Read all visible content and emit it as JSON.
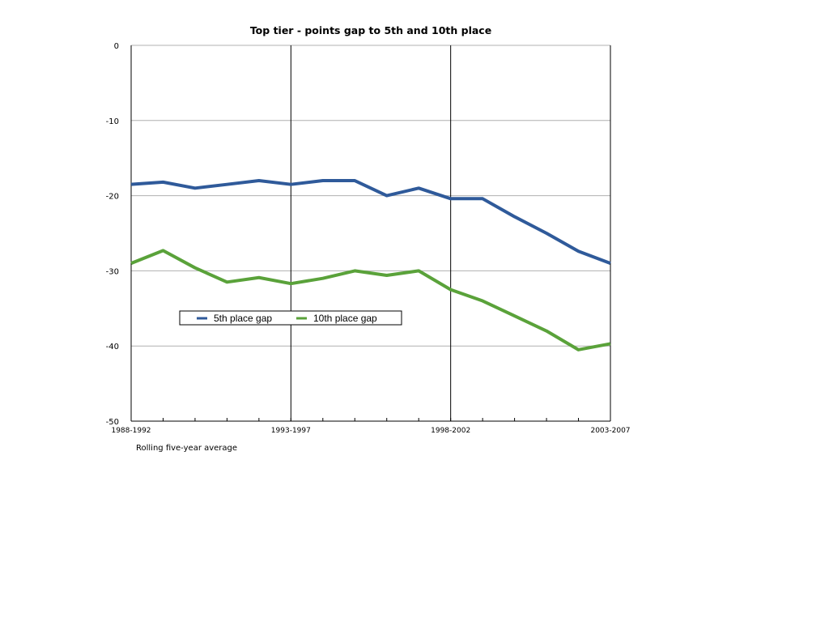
{
  "chart_data": {
    "type": "line",
    "title": "Top tier - points gap to 5th and 10th place",
    "xlabel": "Rolling five-year average",
    "ylabel": "",
    "ylim": [
      -50,
      0
    ],
    "yticks": [
      "0",
      "-10",
      "-20",
      "-30",
      "-40",
      "-50"
    ],
    "ytick_values": [
      0,
      -10,
      -20,
      -30,
      -40,
      -50
    ],
    "x_count": 16,
    "xtick_labels": [
      {
        "index": 0,
        "label": "1988-1992"
      },
      {
        "index": 5,
        "label": "1993-1997"
      },
      {
        "index": 10,
        "label": "1998-2002"
      },
      {
        "index": 15,
        "label": "2003-2007"
      }
    ],
    "grid": "horizontal",
    "legend_placement": "center-left",
    "series": [
      {
        "name": "5th place gap",
        "color": "#2f5a9a",
        "values": [
          -18.5,
          -18.2,
          -19.0,
          -18.5,
          -18.0,
          -18.5,
          -18.0,
          -18.0,
          -20.0,
          -19.0,
          -20.4,
          -20.4,
          -22.8,
          -25.0,
          -27.4,
          -29.0
        ]
      },
      {
        "name": "10th place gap",
        "color": "#5aa23a",
        "values": [
          -29.0,
          -27.3,
          -29.6,
          -31.5,
          -30.9,
          -31.7,
          -31.0,
          -30.0,
          -30.6,
          -30.0,
          -32.5,
          -34.0,
          -36.0,
          -38.0,
          -40.5,
          -39.7
        ]
      }
    ]
  }
}
